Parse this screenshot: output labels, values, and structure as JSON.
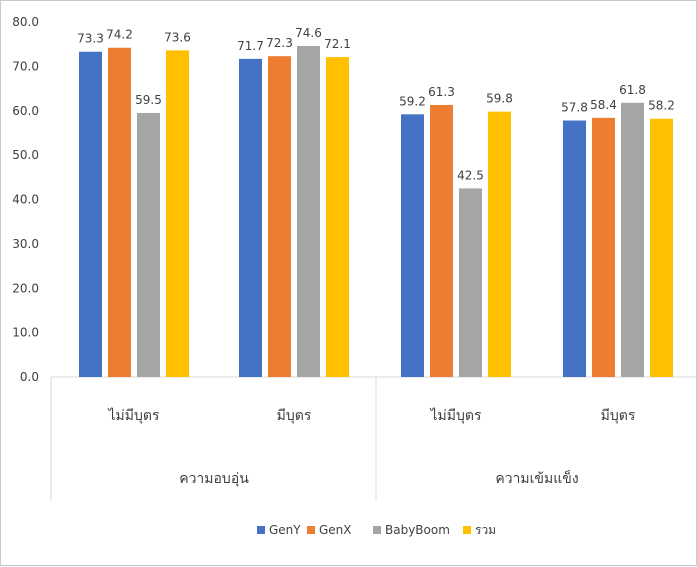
{
  "chart_data": {
    "type": "bar",
    "title": "",
    "xlabel": "",
    "ylabel": "",
    "ylim": [
      0,
      80
    ],
    "yticks": [
      "0.0",
      "10.0",
      "20.0",
      "30.0",
      "40.0",
      "50.0",
      "60.0",
      "70.0",
      "80.0"
    ],
    "grid": false,
    "legend_position": "bottom",
    "groups": [
      {
        "label": "ความอบอุ่น",
        "categories": [
          "ไม่มีบุตร",
          "มีบุตร"
        ]
      },
      {
        "label": "ความเข้มแข็ง",
        "categories": [
          "ไม่มีบุตร",
          "มีบุตร"
        ]
      }
    ],
    "categories": [
      "ไม่มีบุตร",
      "มีบุตร",
      "ไม่มีบุตร",
      "มีบุตร"
    ],
    "series": [
      {
        "name": "GenY",
        "color": "#4472C4",
        "values": [
          73.3,
          71.7,
          59.2,
          57.8
        ],
        "labels": [
          "73.3",
          "71.7",
          "59.2",
          "57.8"
        ]
      },
      {
        "name": "GenX",
        "color": "#ED7D31",
        "values": [
          74.2,
          72.3,
          61.3,
          58.4
        ],
        "labels": [
          "74.2",
          "72.3",
          "61.3",
          "58.4"
        ]
      },
      {
        "name": "BabyBoom",
        "color": "#A5A5A5",
        "values": [
          59.5,
          74.6,
          42.5,
          61.8
        ],
        "labels": [
          "59.5",
          "74.6",
          "42.5",
          "61.8"
        ]
      },
      {
        "name": "รวม",
        "color": "#FFC000",
        "values": [
          73.6,
          72.1,
          59.8,
          58.2
        ],
        "labels": [
          "73.6",
          "72.1",
          "59.8",
          "58.2"
        ]
      }
    ]
  }
}
